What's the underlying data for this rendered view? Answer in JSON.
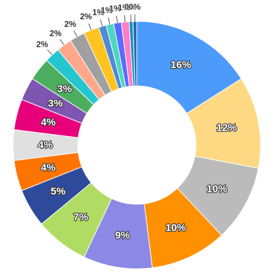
{
  "chart_data": {
    "type": "pie",
    "donut": true,
    "start_angle_deg": 0,
    "direction": "clockwise",
    "slices": [
      {
        "label": "16%",
        "value": 16,
        "color": "#4C9BFB"
      },
      {
        "label": "12%",
        "value": 12,
        "color": "#FFD884"
      },
      {
        "label": "10%",
        "value": 10,
        "color": "#BBBBBB"
      },
      {
        "label": "10%",
        "value": 10,
        "color": "#FF9100"
      },
      {
        "label": "9%",
        "value": 9,
        "color": "#8B88E6"
      },
      {
        "label": "7%",
        "value": 7,
        "color": "#B1DC63"
      },
      {
        "label": "5%",
        "value": 5,
        "color": "#2E4B9B"
      },
      {
        "label": "4%",
        "value": 4,
        "color": "#FF7400"
      },
      {
        "label": "4%",
        "value": 4,
        "color": "#E0E0E0"
      },
      {
        "label": "4%",
        "value": 4,
        "color": "#E8007A"
      },
      {
        "label": "3%",
        "value": 3,
        "color": "#7E55B1"
      },
      {
        "label": "3%",
        "value": 3,
        "color": "#4BAE5F"
      },
      {
        "label": "2%",
        "value": 2,
        "color": "#26C6D0"
      },
      {
        "label": "2%",
        "value": 2,
        "color": "#FFA88C"
      },
      {
        "label": "2%",
        "value": 2,
        "color": "#A0A0A0"
      },
      {
        "label": "2%",
        "value": 2,
        "color": "#FFC41F"
      },
      {
        "label": "1%",
        "value": 1,
        "color": "#4D8BD6"
      },
      {
        "label": "1%",
        "value": 1,
        "color": "#4DD7C0"
      },
      {
        "label": "1%",
        "value": 1,
        "color": "#5B6BFF"
      },
      {
        "label": "1%",
        "value": 1,
        "color": "#FF7FC0"
      },
      {
        "label": "0%",
        "value": 0.5,
        "color": "#1E8FC8"
      },
      {
        "label": "0%",
        "value": 0.5,
        "color": "#1E6FA8"
      }
    ]
  }
}
